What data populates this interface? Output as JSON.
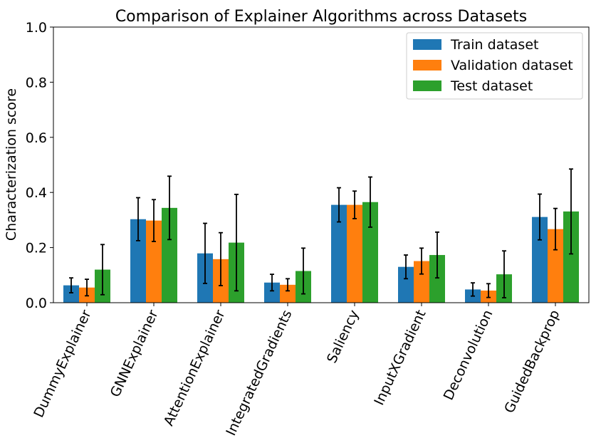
{
  "chart_data": {
    "type": "bar",
    "title": "Comparison of Explainer Algorithms across Datasets",
    "xlabel": "",
    "ylabel": "Characterization score",
    "ylim": [
      0,
      1.0
    ],
    "yticks": [
      "0.0",
      "0.2",
      "0.4",
      "0.6",
      "0.8",
      "1.0"
    ],
    "categories": [
      "DummyExplainer",
      "GNNExplainer",
      "AttentionExplainer",
      "IntegratedGradients",
      "Saliency",
      "InputXGradient",
      "Deconvolution",
      "GuidedBackprop"
    ],
    "series": [
      {
        "name": "Train dataset",
        "color": "#1f77b4",
        "values": [
          0.063,
          0.303,
          0.179,
          0.073,
          0.355,
          0.13,
          0.048,
          0.311
        ],
        "errors": [
          0.027,
          0.078,
          0.109,
          0.03,
          0.062,
          0.043,
          0.024,
          0.083
        ]
      },
      {
        "name": "Validation dataset",
        "color": "#ff7f0e",
        "values": [
          0.055,
          0.298,
          0.158,
          0.065,
          0.355,
          0.151,
          0.044,
          0.267
        ],
        "errors": [
          0.03,
          0.076,
          0.096,
          0.022,
          0.05,
          0.047,
          0.025,
          0.075
        ]
      },
      {
        "name": "Test dataset",
        "color": "#2ca02c",
        "values": [
          0.12,
          0.344,
          0.218,
          0.115,
          0.365,
          0.173,
          0.103,
          0.331
        ],
        "errors": [
          0.091,
          0.115,
          0.175,
          0.083,
          0.091,
          0.083,
          0.085,
          0.154
        ]
      }
    ],
    "legend_position": "top-right",
    "grid": false
  }
}
